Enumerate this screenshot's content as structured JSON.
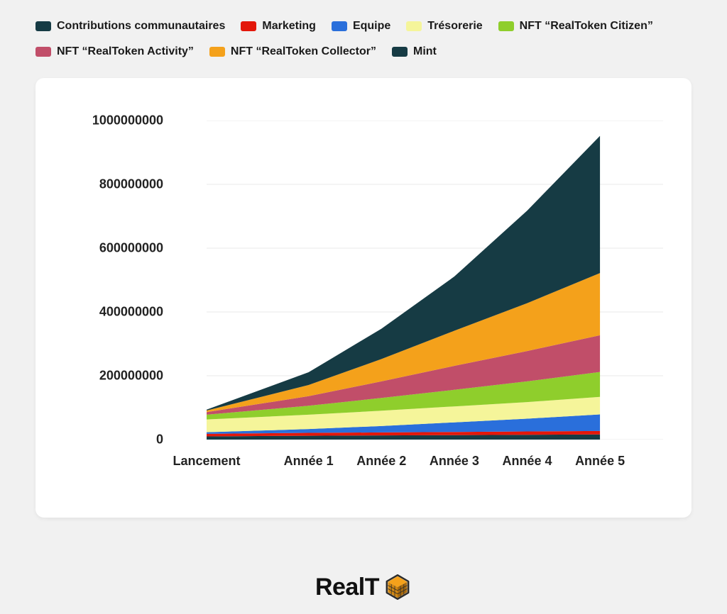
{
  "chart": {
    "type": "stacked-area",
    "background_color": "#ffffff",
    "page_background_color": "#f1f1f1",
    "grid_color": "#e8e8e8",
    "tick_font_size": 18,
    "tick_font_weight": 700,
    "legend_font_size": 16,
    "legend_font_weight": 700,
    "categories": [
      "Lancement",
      "Année 1",
      "Année 2",
      "Année 3",
      "Année 4",
      "Année 5"
    ],
    "x_positions_pct": [
      6,
      27,
      42,
      57,
      72,
      87
    ],
    "ylim": [
      0,
      1000000000
    ],
    "ytick_step": 200000000,
    "y_labels": [
      "0",
      "200000000",
      "400000000",
      "600000000",
      "800000000",
      "1000000000"
    ],
    "series": [
      {
        "name": "Contributions communautaires",
        "label": "Contributions communautaires",
        "color": "#163b44",
        "values": [
          10000000,
          12000000,
          13000000,
          14000000,
          15000000,
          16000000
        ]
      },
      {
        "name": "Marketing",
        "label": "Marketing",
        "color": "#e3170a",
        "values": [
          8000000,
          9000000,
          9500000,
          10000000,
          10500000,
          11000000
        ]
      },
      {
        "name": "Equipe",
        "label": "Equipe",
        "color": "#2a6fdb",
        "values": [
          5000000,
          12000000,
          20000000,
          30000000,
          40000000,
          52000000
        ]
      },
      {
        "name": "Trésorerie",
        "label": "Trésorerie",
        "color": "#f5f59a",
        "values": [
          40000000,
          45000000,
          48000000,
          50000000,
          52000000,
          55000000
        ]
      },
      {
        "name": "NFT \"RealToken Citizen\"",
        "label": "NFT “RealToken Citizen”",
        "color": "#8fce2c",
        "values": [
          15000000,
          28000000,
          40000000,
          52000000,
          65000000,
          78000000
        ]
      },
      {
        "name": "NFT \"RealToken Activity\"",
        "label": "NFT “RealToken Activity”",
        "color": "#c14e69",
        "values": [
          8000000,
          30000000,
          52000000,
          75000000,
          95000000,
          115000000
        ]
      },
      {
        "name": "NFT \"RealToken Collector\"",
        "label": "NFT “RealToken Collector”",
        "color": "#f4a11b",
        "values": [
          5000000,
          35000000,
          70000000,
          110000000,
          150000000,
          195000000
        ]
      },
      {
        "name": "Mint",
        "label": "Mint",
        "color": "#163b44",
        "values": [
          3000000,
          40000000,
          95000000,
          170000000,
          290000000,
          430000000
        ]
      }
    ]
  },
  "logo": {
    "text_dark": "Real",
    "text_light": "T",
    "cube_outline": "#2b2b2b",
    "cube_face1": "#f4a11b",
    "cube_face2": "#d18712",
    "cube_face3": "#a86a0e"
  }
}
